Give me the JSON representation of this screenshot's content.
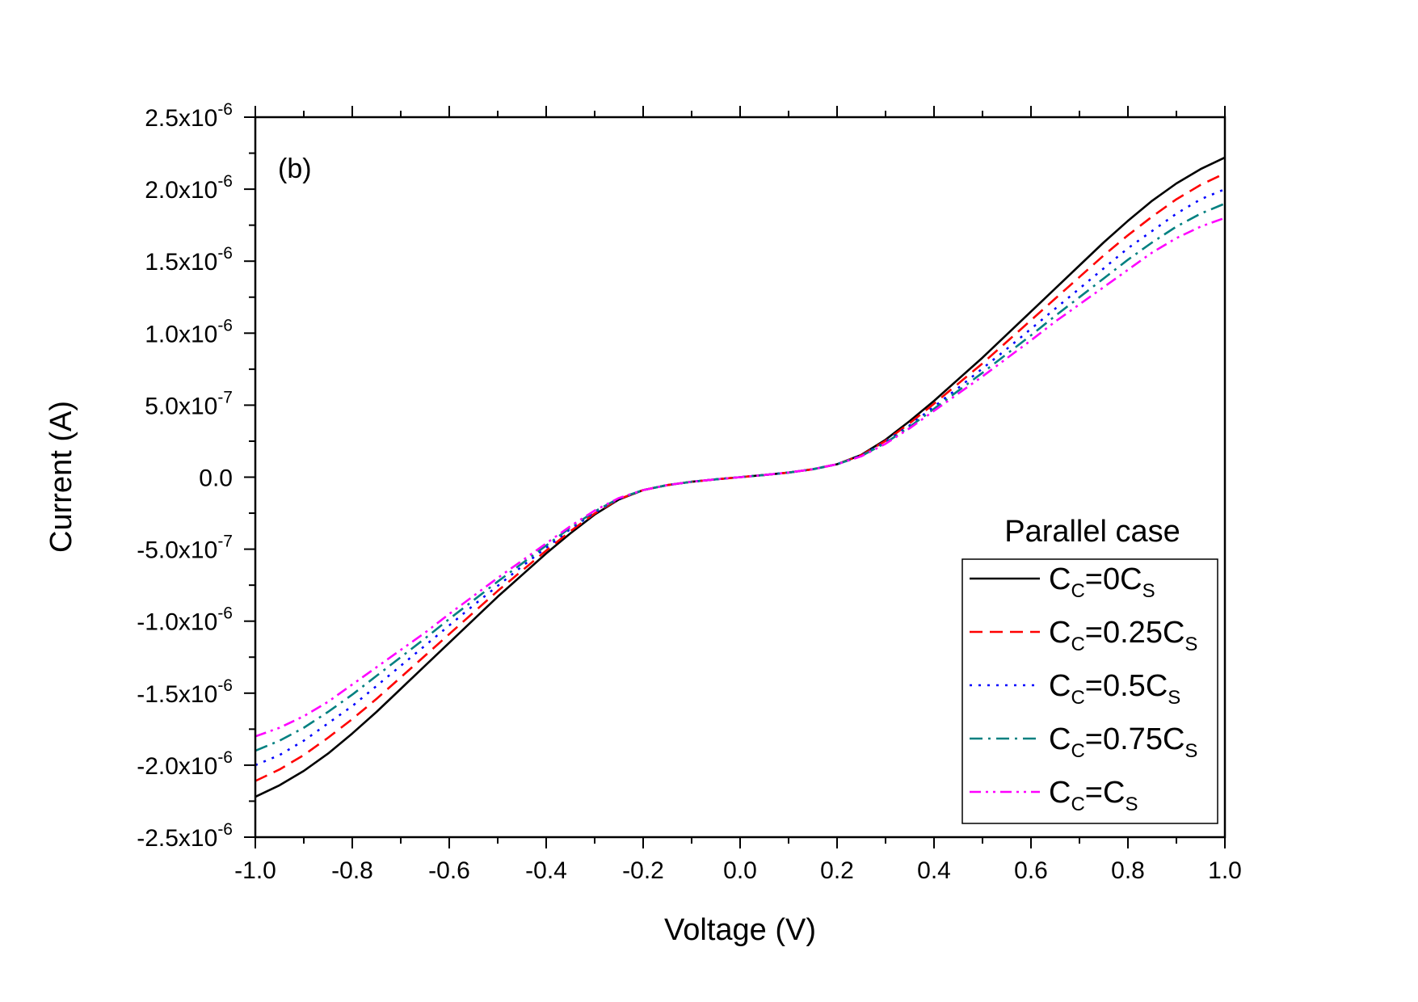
{
  "chart_data": {
    "type": "line",
    "panel_label": "(b)",
    "xlabel": "Voltage (V)",
    "ylabel": "Current (A)",
    "xlim": [
      -1.0,
      1.0
    ],
    "ylim": [
      -2.5e-06,
      2.5e-06
    ],
    "x_ticks": [
      -1.0,
      -0.8,
      -0.6,
      -0.4,
      -0.2,
      0.0,
      0.2,
      0.4,
      0.6,
      0.8,
      1.0
    ],
    "x_tick_labels": [
      "-1.0",
      "-0.8",
      "-0.6",
      "-0.4",
      "-0.2",
      "0.0",
      "0.2",
      "0.4",
      "0.6",
      "0.8",
      "1.0"
    ],
    "y_ticks": [
      {
        "value": 2.5e-06,
        "mant": "2.5x10",
        "exp": "-6"
      },
      {
        "value": 2e-06,
        "mant": "2.0x10",
        "exp": "-6"
      },
      {
        "value": 1.5e-06,
        "mant": "1.5x10",
        "exp": "-6"
      },
      {
        "value": 1e-06,
        "mant": "1.0x10",
        "exp": "-6"
      },
      {
        "value": 5e-07,
        "mant": "5.0x10",
        "exp": "-7"
      },
      {
        "value": 0.0,
        "mant": "0.0",
        "exp": ""
      },
      {
        "value": -5e-07,
        "mant": "-5.0x10",
        "exp": "-7"
      },
      {
        "value": -1e-06,
        "mant": "-1.0x10",
        "exp": "-6"
      },
      {
        "value": -1.5e-06,
        "mant": "-1.5x10",
        "exp": "-6"
      },
      {
        "value": -2e-06,
        "mant": "-2.0x10",
        "exp": "-6"
      },
      {
        "value": -2.5e-06,
        "mant": "-2.5x10",
        "exp": "-6"
      }
    ],
    "x": [
      0,
      0.05,
      0.1,
      0.15,
      0.2,
      0.25,
      0.3,
      0.35,
      0.4,
      0.45,
      0.5,
      0.55,
      0.6,
      0.65,
      0.7,
      0.75,
      0.8,
      0.85,
      0.9,
      0.95,
      1.0
    ],
    "legend": {
      "title": "Parallel case",
      "position": "bottom-right"
    },
    "series": [
      {
        "name": "C_C=0C_S",
        "label_parts": [
          "C",
          "C",
          "=0C",
          "S"
        ],
        "color": "#000000",
        "dash": "solid",
        "values": [
          0,
          1.5e-08,
          3.2e-08,
          5.5e-08,
          9e-08,
          1.55e-07,
          2.6e-07,
          3.9e-07,
          5.3e-07,
          6.8e-07,
          8.3e-07,
          9.9e-07,
          1.15e-06,
          1.31e-06,
          1.47e-06,
          1.63e-06,
          1.78e-06,
          1.92e-06,
          2.04e-06,
          2.14e-06,
          2.22e-06
        ]
      },
      {
        "name": "C_C=0.25C_S",
        "label_parts": [
          "C",
          "C",
          "=0.25C",
          "S"
        ],
        "color": "#ff0000",
        "dash": "dashed",
        "values": [
          0,
          1.5e-08,
          3.2e-08,
          5.5e-08,
          9e-08,
          1.52e-07,
          2.52e-07,
          3.75e-07,
          5.1e-07,
          6.5e-07,
          7.9e-07,
          9.4e-07,
          1.09e-06,
          1.24e-06,
          1.39e-06,
          1.54e-06,
          1.68e-06,
          1.81e-06,
          1.93e-06,
          2.03e-06,
          2.11e-06
        ]
      },
      {
        "name": "C_C=0.5C_S",
        "label_parts": [
          "C",
          "C",
          "=0.5C",
          "S"
        ],
        "color": "#0000ff",
        "dash": "dotted",
        "values": [
          0,
          1.5e-08,
          3.2e-08,
          5.5e-08,
          9e-08,
          1.5e-07,
          2.45e-07,
          3.6e-07,
          4.9e-07,
          6.2e-07,
          7.55e-07,
          8.9e-07,
          1.03e-06,
          1.17e-06,
          1.31e-06,
          1.45e-06,
          1.59e-06,
          1.71e-06,
          1.83e-06,
          1.93e-06,
          2e-06
        ]
      },
      {
        "name": "C_C=0.75C_S",
        "label_parts": [
          "C",
          "C",
          "=0.75C",
          "S"
        ],
        "color": "#008080",
        "dash": "dashdot",
        "values": [
          0,
          1.5e-08,
          3.2e-08,
          5.5e-08,
          9e-08,
          1.47e-07,
          2.38e-07,
          3.5e-07,
          4.75e-07,
          6e-07,
          7.25e-07,
          8.55e-07,
          9.85e-07,
          1.12e-06,
          1.25e-06,
          1.38e-06,
          1.51e-06,
          1.63e-06,
          1.74e-06,
          1.83e-06,
          1.9e-06
        ]
      },
      {
        "name": "C_C=C_S",
        "label_parts": [
          "C",
          "C",
          "=C",
          "S"
        ],
        "color": "#ff00ff",
        "dash": "dashdotdot",
        "values": [
          0,
          1.5e-08,
          3.2e-08,
          5.5e-08,
          9e-08,
          1.45e-07,
          2.32e-07,
          3.4e-07,
          4.6e-07,
          5.8e-07,
          7e-07,
          8.25e-07,
          9.5e-07,
          1.08e-06,
          1.2e-06,
          1.32e-06,
          1.44e-06,
          1.56e-06,
          1.66e-06,
          1.74e-06,
          1.8e-06
        ]
      }
    ]
  }
}
